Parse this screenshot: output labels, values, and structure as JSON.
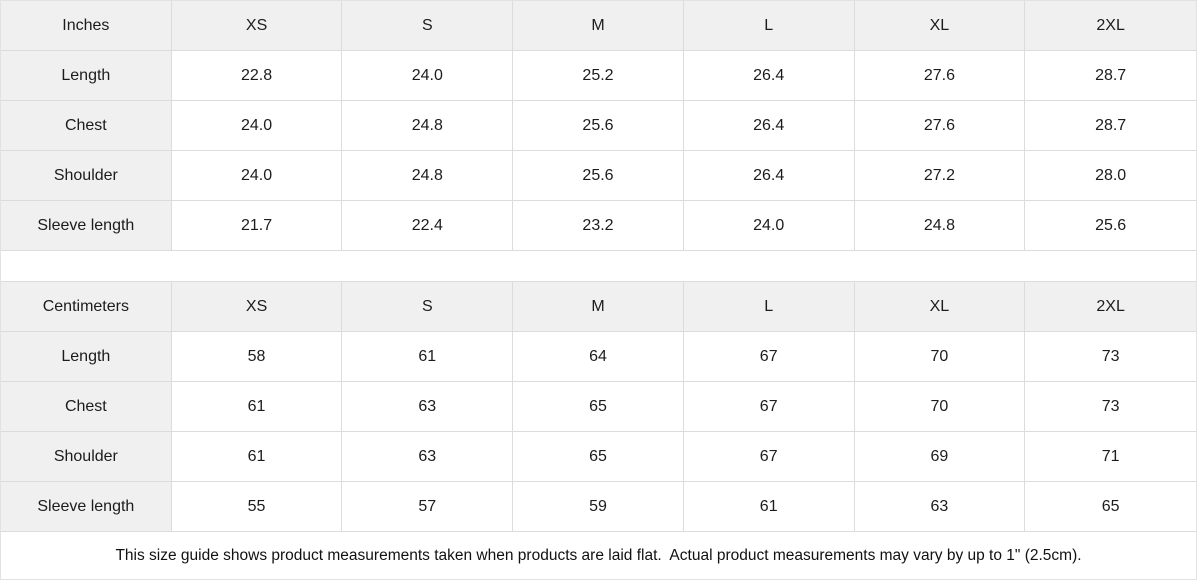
{
  "colors": {
    "header_background": "#f0f0f0",
    "label_column_background": "#f0f0f0",
    "grid_border": "#dcdcdc",
    "text": "#1c1c1c"
  },
  "inches_table": {
    "unit_label": "Inches",
    "sizes": [
      "XS",
      "S",
      "M",
      "L",
      "XL",
      "2XL"
    ],
    "rows": [
      {
        "label": "Length",
        "values": [
          "22.8",
          "24.0",
          "25.2",
          "26.4",
          "27.6",
          "28.7"
        ]
      },
      {
        "label": "Chest",
        "values": [
          "24.0",
          "24.8",
          "25.6",
          "26.4",
          "27.6",
          "28.7"
        ]
      },
      {
        "label": "Shoulder",
        "values": [
          "24.0",
          "24.8",
          "25.6",
          "26.4",
          "27.2",
          "28.0"
        ]
      },
      {
        "label": "Sleeve length",
        "values": [
          "21.7",
          "22.4",
          "23.2",
          "24.0",
          "24.8",
          "25.6"
        ]
      }
    ]
  },
  "centimeters_table": {
    "unit_label": "Centimeters",
    "sizes": [
      "XS",
      "S",
      "M",
      "L",
      "XL",
      "2XL"
    ],
    "rows": [
      {
        "label": "Length",
        "values": [
          "58",
          "61",
          "64",
          "67",
          "70",
          "73"
        ]
      },
      {
        "label": "Chest",
        "values": [
          "61",
          "63",
          "65",
          "67",
          "70",
          "73"
        ]
      },
      {
        "label": "Shoulder",
        "values": [
          "61",
          "63",
          "65",
          "67",
          "69",
          "71"
        ]
      },
      {
        "label": "Sleeve length",
        "values": [
          "55",
          "57",
          "59",
          "61",
          "63",
          "65"
        ]
      }
    ]
  },
  "footer": {
    "note": "This size guide shows product measurements taken when products are laid flat.  Actual product measurements may vary by up to 1\" (2.5cm)."
  }
}
